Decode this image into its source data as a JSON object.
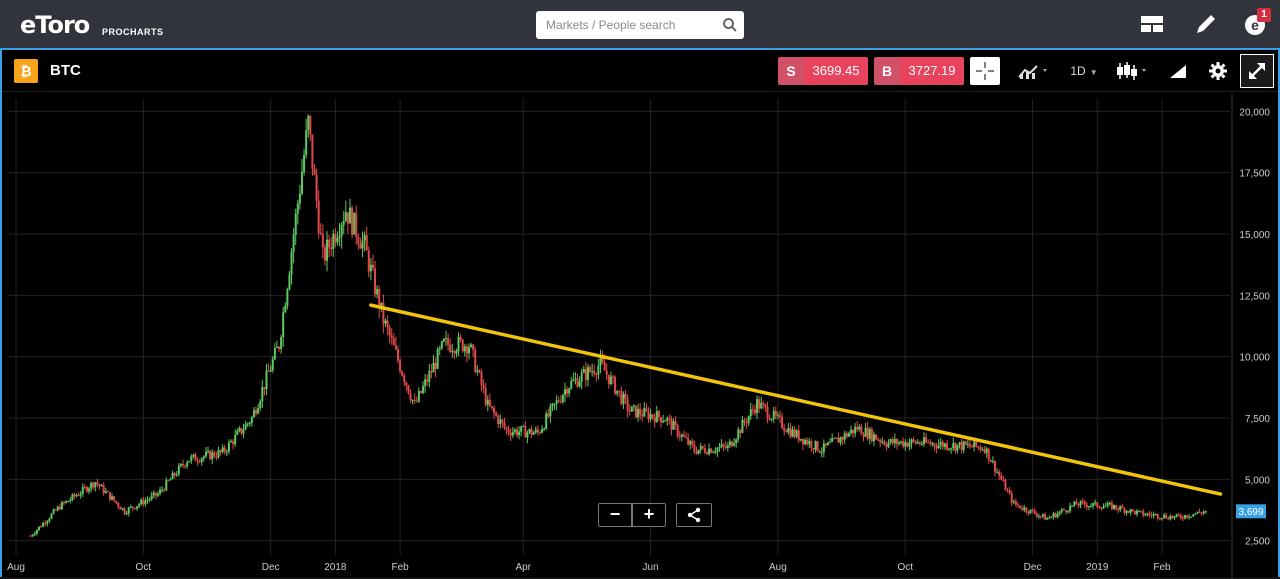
{
  "topbar": {
    "logo": "eToro",
    "logo_sub": "PROCHARTS",
    "search_placeholder": "Markets / People search",
    "icons": [
      "layout-icon",
      "edit-icon",
      "profile-icon"
    ],
    "notification_count": "1"
  },
  "chart_header": {
    "symbol": "BTC",
    "symbol_icon": "bitcoin-icon",
    "sell_label": "S",
    "sell_price": "3699.45",
    "buy_label": "B",
    "buy_price": "3727.19",
    "timeframe": "1D",
    "tools": [
      "crosshair-icon",
      "chart-type-icon",
      "candles-icon",
      "drawing-icon",
      "settings-icon",
      "fullscreen-icon"
    ]
  },
  "controls": {
    "zoom_out": "−",
    "zoom_in": "+",
    "share_icon": "share-icon"
  },
  "colors": {
    "up": "#5fc95f",
    "down": "#e24a4a",
    "trendline": "#f2c40c",
    "accent_border": "#39a0e6",
    "sell": "#e8435c",
    "bitcoin": "#f7a41b"
  },
  "chart_data": {
    "type": "line",
    "series": [
      {
        "x": [
          "2017-08",
          "2017-08",
          "2017-09",
          "2017-09",
          "2017-10",
          "2017-10",
          "2017-11",
          "2017-11",
          "2017-12",
          "2017-12",
          "2017-12",
          "2017-12",
          "2018-01",
          "2018-01",
          "2018-01",
          "2018-02",
          "2018-02",
          "2018-03",
          "2018-03",
          "2018-03",
          "2018-04",
          "2018-04",
          "2018-05",
          "2018-05",
          "2018-06",
          "2018-06",
          "2018-07",
          "2018-07",
          "2018-08",
          "2018-08",
          "2018-09",
          "2018-09",
          "2018-10",
          "2018-10",
          "2018-11",
          "2018-11",
          "2018-12",
          "2018-12",
          "2019-01",
          "2019-01",
          "2019-02",
          "2019-02"
        ],
        "values": [
          2700,
          3900,
          4900,
          3700,
          4400,
          5800,
          6100,
          7500,
          10500,
          15000,
          19500,
          14000,
          16000,
          14500,
          11500,
          8000,
          10500,
          10500,
          8000,
          7000,
          6900,
          8800,
          9700,
          7800,
          7500,
          6200,
          6300,
          8100,
          6900,
          6200,
          7100,
          6500,
          6500,
          6400,
          6300,
          4000,
          3400,
          4000,
          3900,
          3600,
          3450,
          3699
        ]
      }
    ],
    "trendline": {
      "from": [
        "2018-01-18",
        12100
      ],
      "to": [
        "2019-03-01",
        4400
      ]
    },
    "x_ticks": [
      "Aug",
      "Oct",
      "Dec",
      "2018",
      "Feb",
      "Apr",
      "Jun",
      "Aug",
      "Oct",
      "Dec",
      "2019",
      "Feb"
    ],
    "y_ticks": [
      "20,000",
      "17,500",
      "15,000",
      "12,500",
      "10,000",
      "7,500",
      "5,000",
      "2,500"
    ],
    "ylim": [
      2000,
      20500
    ],
    "last_price_label": "3,699",
    "grid": true
  }
}
